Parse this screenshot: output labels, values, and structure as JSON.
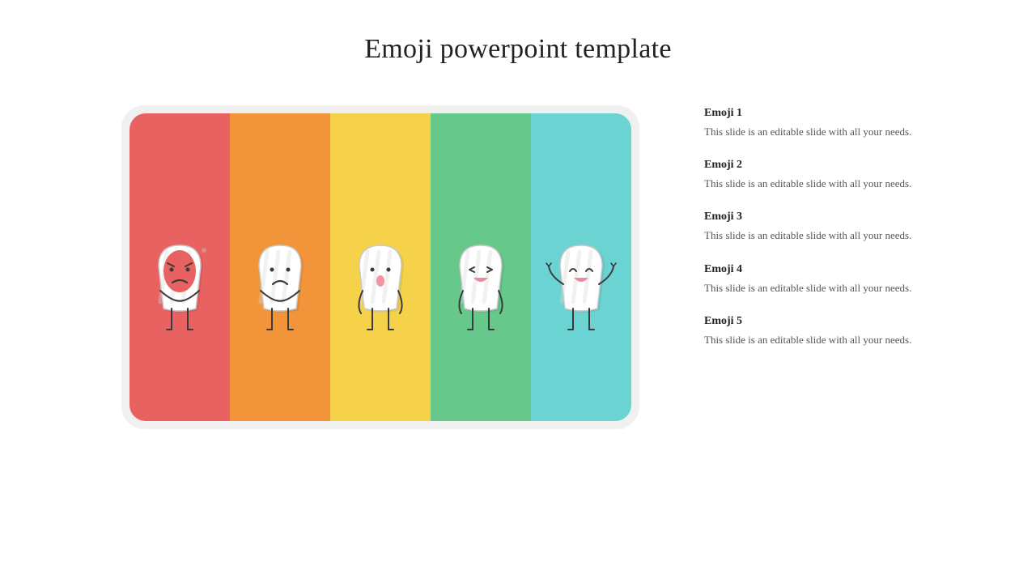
{
  "title": "Emoji powerpoint template",
  "card": {
    "background": "#f0f0f0",
    "border_radius": 28,
    "stripes": [
      {
        "color": "#e96262",
        "mood": "angry",
        "face_color": "#e96262",
        "hood": true,
        "arms": "crossed",
        "legs": true
      },
      {
        "color": "#f2953a",
        "mood": "sad",
        "face_color": "#ffffff",
        "hood": false,
        "arms": "crossed",
        "legs": true
      },
      {
        "color": "#f6d24a",
        "mood": "worried",
        "face_color": "#ffffff",
        "hood": false,
        "arms": "down",
        "legs": true
      },
      {
        "color": "#66c88b",
        "mood": "happy",
        "face_color": "#ffffff",
        "hood": false,
        "arms": "down",
        "legs": true
      },
      {
        "color": "#6cd3d3",
        "mood": "excited",
        "face_color": "#ffffff",
        "hood": false,
        "arms": "up",
        "legs": true
      }
    ],
    "body_fill": "#ffffff",
    "body_stroke": "#c8c8c8",
    "limb_stroke": "#3a3a3a",
    "eye_color": "#3a3a3a",
    "mouth_sad": "#3a3a3a",
    "mouth_happy": "#ef8a9a",
    "shadow_color": "#d8d8d8"
  },
  "legend": [
    {
      "title": "Emoji 1",
      "desc": "This slide is an editable slide with all your needs."
    },
    {
      "title": "Emoji 2",
      "desc": "This slide is an editable slide with all your needs."
    },
    {
      "title": "Emoji 3",
      "desc": "This slide is an editable slide with all your needs."
    },
    {
      "title": "Emoji 4",
      "desc": "This slide is an editable slide with all your needs."
    },
    {
      "title": "Emoji 5",
      "desc": "This slide is an editable slide with all your needs."
    }
  ]
}
